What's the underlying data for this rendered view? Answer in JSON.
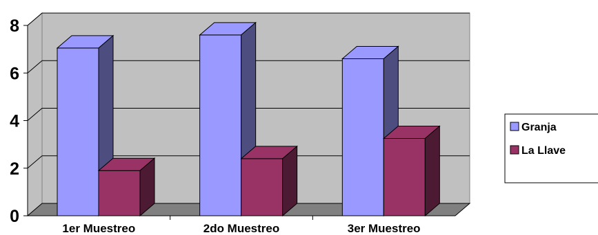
{
  "chart_data": {
    "type": "bar",
    "categories": [
      "1er Muestreo",
      "2do Muestreo",
      "3er Muestreo"
    ],
    "series": [
      {
        "name": "Granja",
        "values": [
          7.05,
          7.6,
          6.6
        ],
        "color": "#9999FF"
      },
      {
        "name": "La Llave",
        "values": [
          1.9,
          2.4,
          3.25
        ],
        "color": "#993366"
      }
    ],
    "yticks": [
      "0",
      "2",
      "4",
      "6",
      "8"
    ],
    "ylim": [
      0,
      8
    ],
    "grid": true,
    "legend_position": "right",
    "title": "",
    "xlabel": "",
    "ylabel": "",
    "colors": {
      "wall": "#C0C0C0",
      "floor": "#808080",
      "gridline": "#000000"
    }
  }
}
